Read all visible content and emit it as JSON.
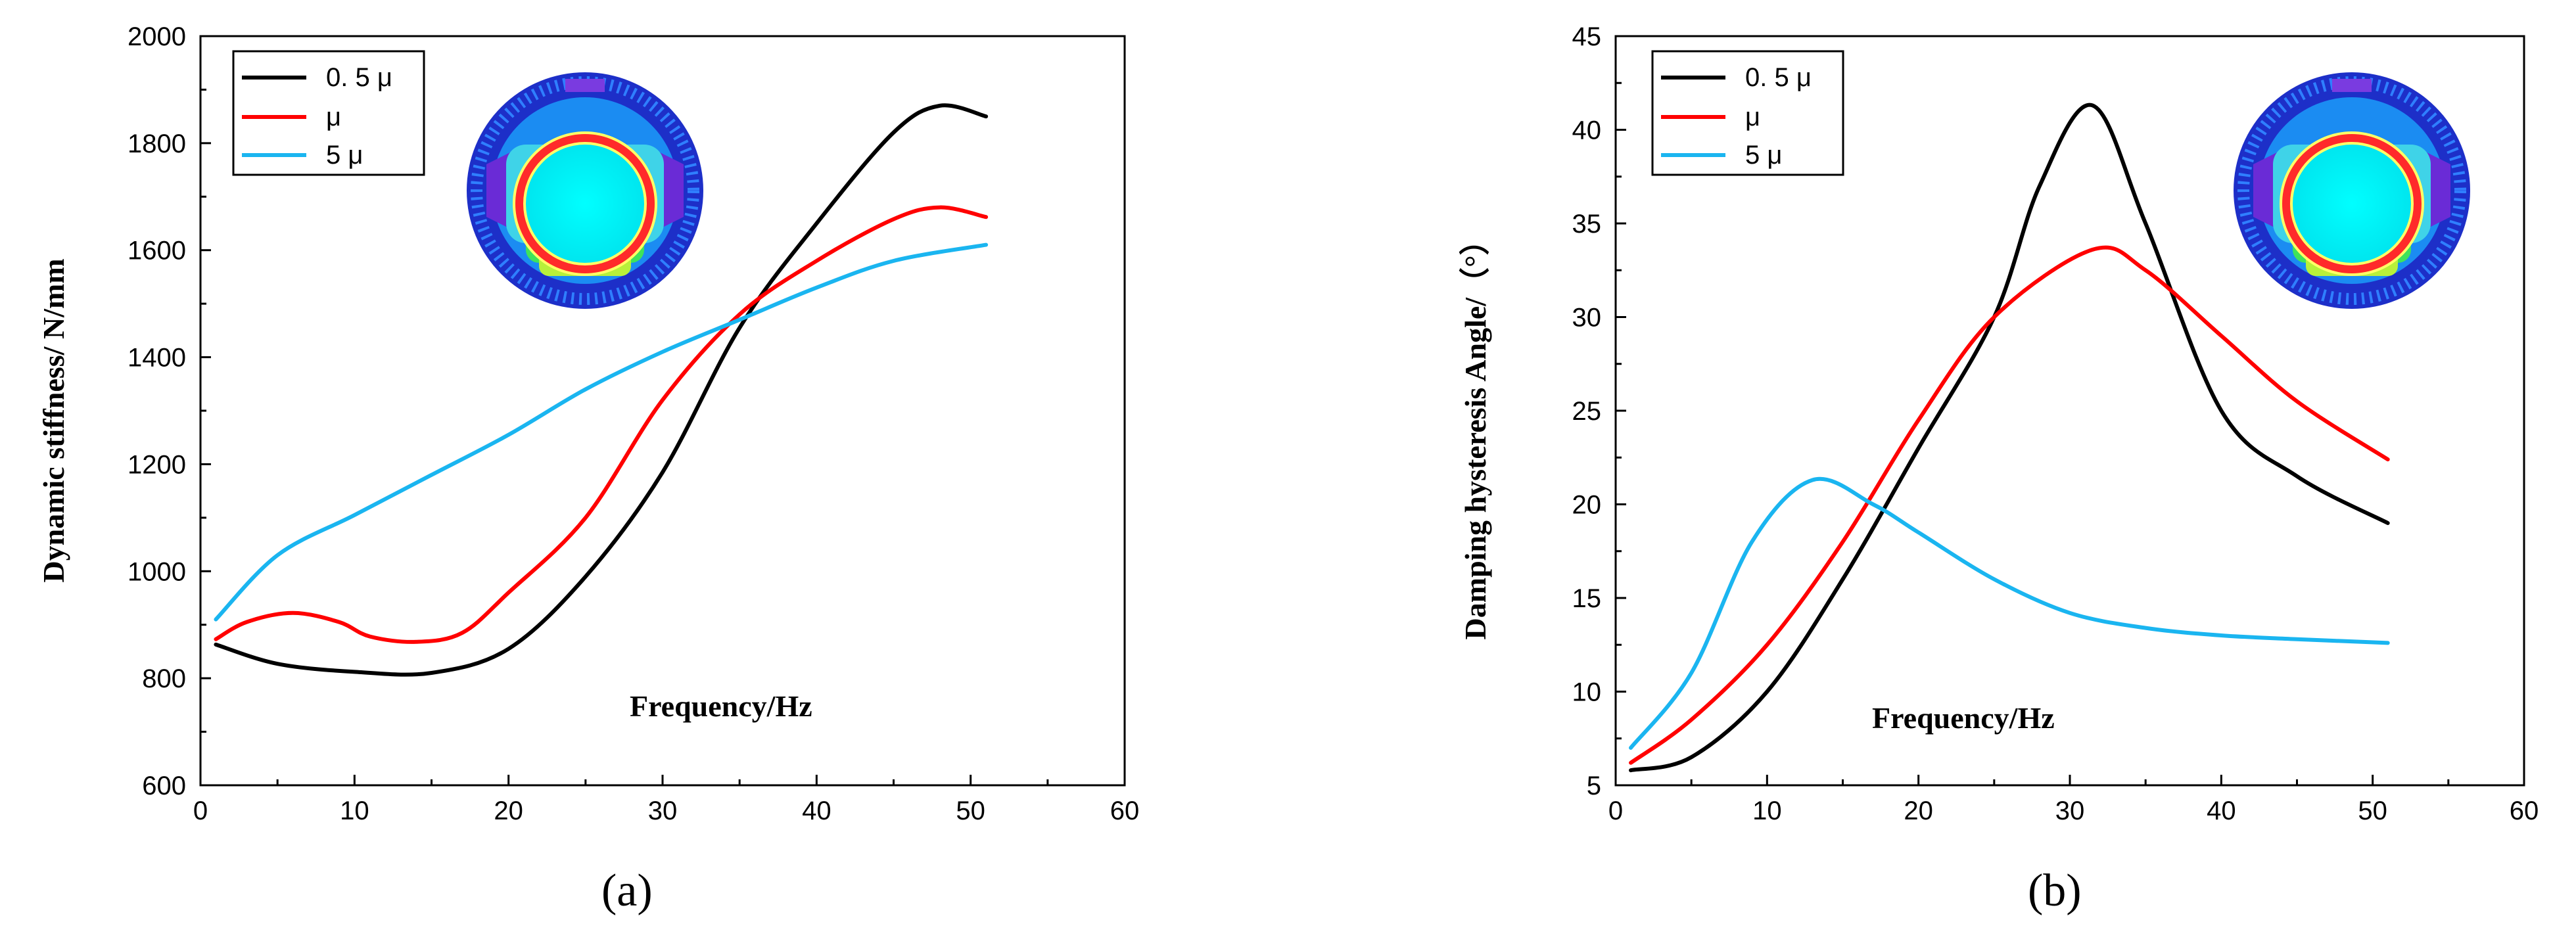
{
  "chart_data": [
    {
      "type": "line",
      "panel_label": "(a)",
      "xlabel": "Frequency/Hz",
      "ylabel": "Dynamic stiffness/ N/mm",
      "xlim": [
        0,
        60
      ],
      "ylim": [
        600,
        2000
      ],
      "xticks": [
        "0",
        "10",
        "20",
        "30",
        "40",
        "50",
        "60"
      ],
      "yticks": [
        "600",
        "800",
        "1000",
        "1200",
        "1400",
        "1600",
        "1800",
        "2000"
      ],
      "legend_position": "top-left",
      "inset": "finite-element-contour-image",
      "series": [
        {
          "name": "0. 5 μ",
          "color": "#000000",
          "x": [
            1,
            5,
            10,
            15,
            20,
            25,
            30,
            35,
            40,
            45,
            48,
            51
          ],
          "y": [
            863,
            827,
            812,
            810,
            855,
            990,
            1185,
            1455,
            1650,
            1820,
            1870,
            1850
          ]
        },
        {
          "name": "μ",
          "color": "#ff0000",
          "x": [
            1,
            3,
            6,
            9,
            11,
            14,
            17,
            20,
            25,
            30,
            35,
            40,
            45,
            48,
            51
          ],
          "y": [
            873,
            905,
            922,
            905,
            878,
            868,
            885,
            960,
            1100,
            1320,
            1480,
            1580,
            1658,
            1680,
            1662
          ]
        },
        {
          "name": "5 μ",
          "color": "#1ab5f0",
          "x": [
            1,
            5,
            10,
            15,
            20,
            25,
            30,
            35,
            40,
            45,
            51
          ],
          "y": [
            910,
            1030,
            1105,
            1180,
            1255,
            1340,
            1410,
            1470,
            1530,
            1580,
            1610
          ]
        }
      ]
    },
    {
      "type": "line",
      "panel_label": "(b)",
      "xlabel": "Frequency/Hz",
      "ylabel": "Damping hysteresis Angle/（°）",
      "xlim": [
        0,
        60
      ],
      "ylim": [
        5,
        45
      ],
      "xticks": [
        "0",
        "10",
        "20",
        "30",
        "40",
        "50",
        "60"
      ],
      "yticks": [
        "5",
        "10",
        "15",
        "20",
        "25",
        "30",
        "35",
        "40",
        "45"
      ],
      "legend_position": "top-left",
      "inset": "finite-element-contour-image",
      "series": [
        {
          "name": "0. 5 μ",
          "color": "#000000",
          "x": [
            1,
            5,
            10,
            15,
            20,
            25,
            28,
            31.5,
            35,
            40,
            45,
            51
          ],
          "y": [
            5.8,
            6.5,
            10.0,
            16.0,
            23.0,
            30.0,
            37.0,
            41.3,
            35.0,
            25.0,
            21.5,
            19.0
          ]
        },
        {
          "name": "μ",
          "color": "#ff0000",
          "x": [
            1,
            5,
            10,
            15,
            20,
            25,
            31.5,
            35,
            40,
            45,
            51
          ],
          "y": [
            6.2,
            8.5,
            12.5,
            18.0,
            24.5,
            30.0,
            33.6,
            32.5,
            29.0,
            25.5,
            22.4
          ]
        },
        {
          "name": "5 μ",
          "color": "#1ab5f0",
          "x": [
            1,
            5,
            9,
            13,
            17,
            20,
            25,
            30,
            35,
            40,
            45,
            51
          ],
          "y": [
            7.0,
            11.0,
            18.0,
            21.3,
            20.0,
            18.5,
            16.0,
            14.2,
            13.4,
            13.0,
            12.8,
            12.6
          ]
        }
      ]
    }
  ]
}
